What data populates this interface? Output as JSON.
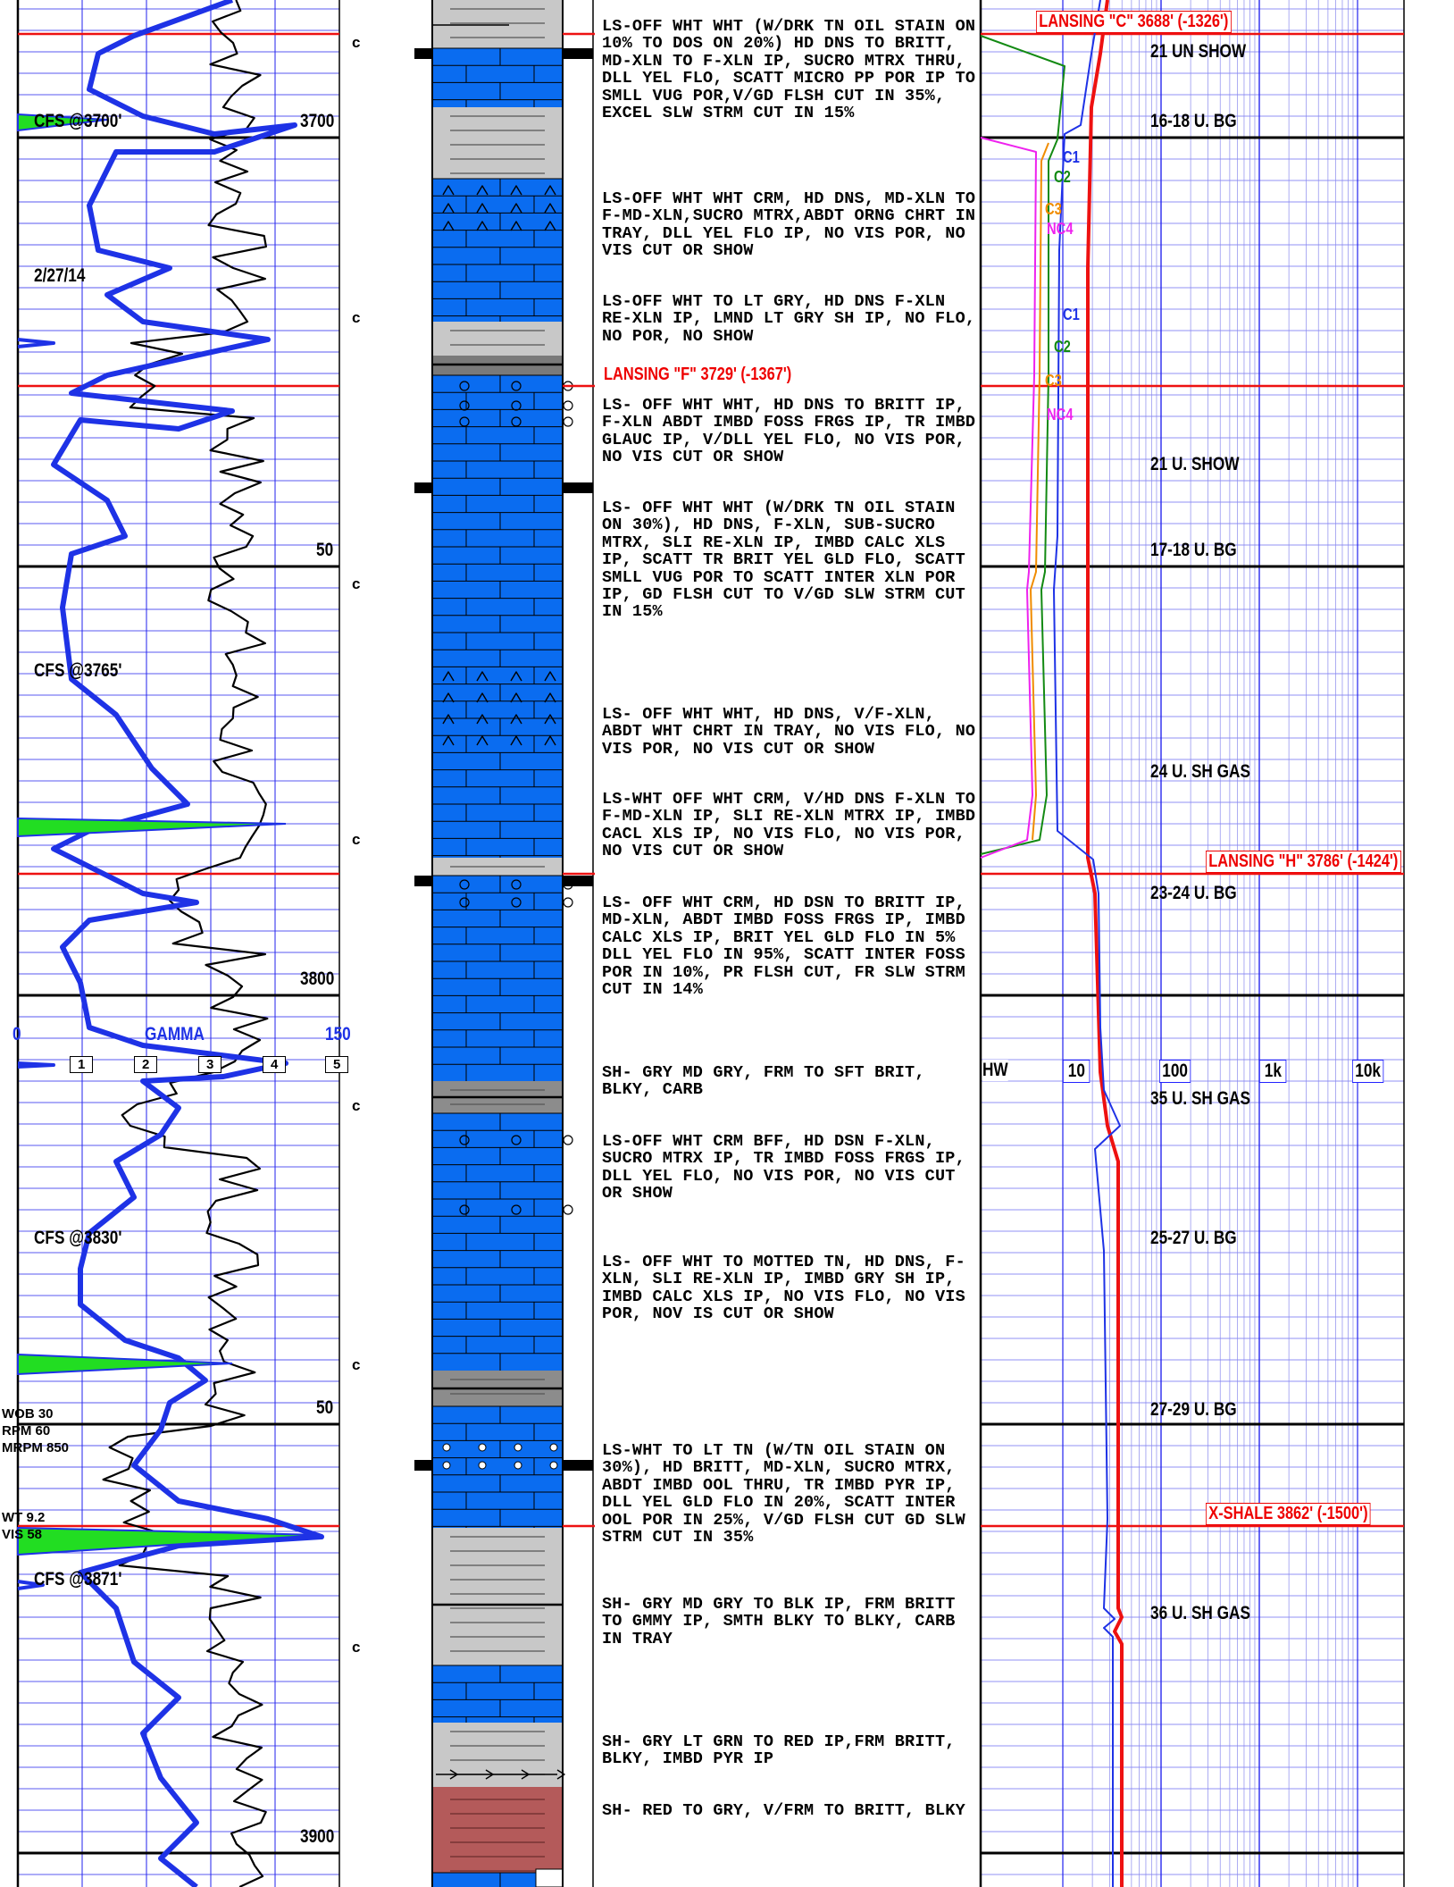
{
  "left_track": {
    "depth_labels": [
      "3700",
      "50",
      "3800",
      "50",
      "3900"
    ],
    "annotations": {
      "cfs_top": "CFS @3700'",
      "date": "2/27/14",
      "cfs_3765": "CFS @3765'",
      "cfs_3830": "CFS @3830'",
      "cfs_3871": "CFS @3871'",
      "wob": "WOB 30",
      "rpm": "RPM 60",
      "mrpm": "MRPM 850",
      "wt": "WT 9.2",
      "vis": "VIS 58"
    },
    "gamma_scale": {
      "min": "0",
      "title": "GAMMA",
      "max": "150"
    },
    "rop_scale": [
      "1",
      "2",
      "3",
      "4",
      "5"
    ],
    "connection_marker": "c"
  },
  "formations": [
    {
      "name": "LANSING \"C\" 3688' (-1326')"
    },
    {
      "name": "LANSING \"F\" 3729' (-1367')"
    },
    {
      "name": "LANSING \"H\" 3786' (-1424')"
    },
    {
      "name": "X-SHALE 3862' (-1500')"
    }
  ],
  "descriptions": [
    "LS-OFF WHT WHT (W/DRK TN OIL STAIN ON 10% TO DOS ON 20%) HD DNS TO BRITT, MD-XLN TO F-XLN IP, SUCRO MTRX THRU, DLL YEL FLO, SCATT MICRO PP POR IP TO SMLL VUG POR,V/GD FLSH CUT IN 35%, EXCEL SLW STRM CUT IN 15%",
    "LS-OFF WHT WHT CRM, HD DNS, MD-XLN TO F-MD-XLN,SUCRO MTRX,ABDT ORNG CHRT IN TRAY, DLL YEL FLO IP, NO VIS POR, NO VIS CUT OR SHOW",
    "LS-OFF WHT TO LT GRY, HD DNS F-XLN RE-XLN IP, LMND LT GRY SH IP, NO FLO, NO POR, NO SHOW",
    "LS- OFF WHT WHT, HD DNS TO BRITT IP, F-XLN ABDT IMBD FOSS FRGS IP, TR IMBD GLAUC IP, V/DLL YEL FLO, NO VIS POR, NO VIS CUT OR SHOW",
    "LS- OFF WHT WHT (W/DRK TN OIL STAIN ON 30%), HD DNS, F-XLN, SUB-SUCRO MTRX, SLI RE-XLN IP, IMBD CALC XLS IP, SCATT TR BRIT YEL GLD FLO, SCATT SMLL VUG POR TO SCATT INTER XLN POR IP, GD FLSH CUT TO V/GD SLW STRM CUT IN 15%",
    "LS- OFF WHT WHT, HD DNS, V/F-XLN, ABDT WHT CHRT IN TRAY, NO VIS FLO, NO VIS POR, NO VIS CUT OR SHOW",
    "LS-WHT OFF WHT CRM, V/HD DNS F-XLN TO F-MD-XLN IP, SLI RE-XLN MTRX IP, IMBD CACL XLS IP, NO VIS FLO, NO VIS POR, NO VIS CUT OR SHOW",
    "LS- OFF WHT CRM, HD DSN TO BRITT IP, MD-XLN, ABDT IMBD FOSS FRGS IP, IMBD CALC XLS IP, BRIT YEL GLD FLO IN 5% DLL YEL FLO IN 95%, SCATT INTER FOSS POR IN 10%, PR FLSH CUT, FR SLW STRM CUT IN 14%",
    "SH- GRY MD GRY, FRM TO SFT BRIT, BLKY, CARB",
    "LS-OFF WHT CRM BFF, HD DSN F-XLN, SUCRO MTRX IP, TR IMBD FOSS FRGS IP, DLL YEL FLO, NO VIS POR, NO VIS CUT OR SHOW",
    "LS- OFF WHT TO MOTTED TN, HD DNS, F-XLN, SLI RE-XLN IP, IMBD GRY SH IP, IMBD CALC XLS IP, NO VIS FLO, NO VIS POR, NOV IS CUT OR SHOW",
    "LS-WHT TO LT TN (W/TN OIL STAIN ON 30%), HD BRITT, MD-XLN, SUCRO MTRX, ABDT IMBD OOL THRU, TR IMBD PYR IP, DLL YEL GLD FLO IN 20%, SCATT INTER OOL POR IN 25%, V/GD FLSH CUT GD SLW STRM CUT IN 35%",
    "SH- GRY MD GRY TO BLK IP, FRM BRITT TO GMMY IP, SMTH BLKY TO BLKY, CARB IN TRAY",
    "SH- GRY LT GRN TO RED IP,FRM BRITT, BLKY, IMBD PYR IP",
    "SH- RED TO GRY, V/FRM TO BRITT, BLKY"
  ],
  "gas_track": {
    "scale_labels": [
      "HW",
      "10",
      "100",
      "1k",
      "10k"
    ],
    "curve_labels": [
      "C1",
      "C2",
      "C3",
      "NC4",
      "C1",
      "C2",
      "C3",
      "NC4"
    ],
    "readings": [
      "21 UN SHOW",
      "16-18 U. BG",
      "21 U. SHOW",
      "17-18 U. BG",
      "24 U. SH GAS",
      "23-24 U. BG",
      "35 U. SH GAS",
      "25-27 U. BG",
      "27-29 U. BG",
      "36 U. SH GAS"
    ]
  },
  "colors": {
    "limestone": "#0a6cf0",
    "shale_light": "#c8c8c8",
    "shale_dark": "#8c8c8c",
    "red_shale": "#b45a5a",
    "gamma": "#1e32e6",
    "formation_line": "#ee1111",
    "cutting_fill": "#22dd22"
  }
}
